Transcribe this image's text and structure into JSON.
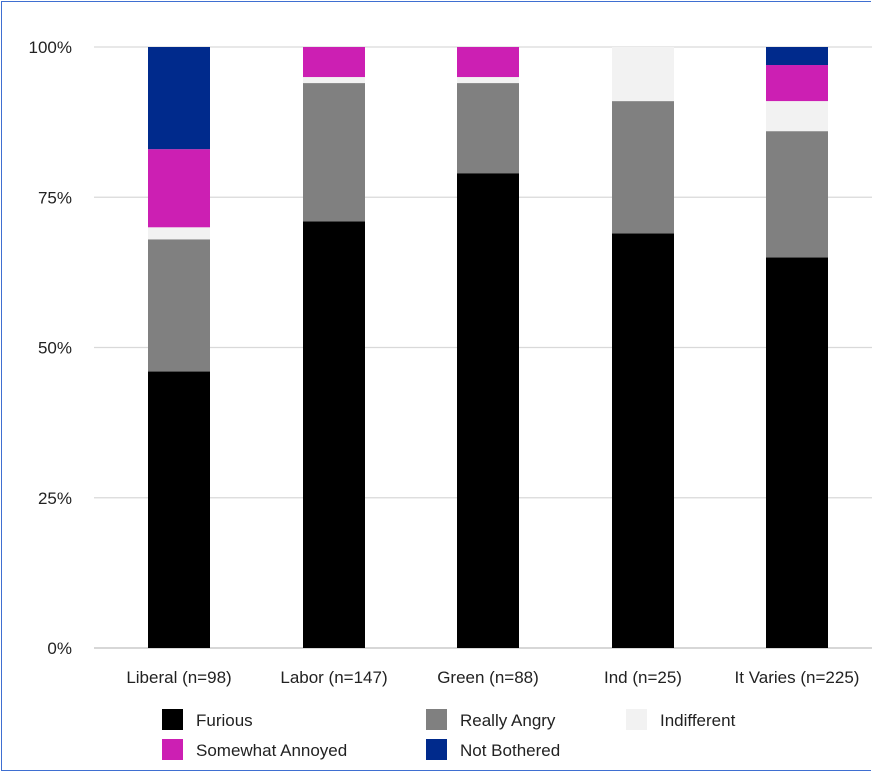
{
  "chart_data": {
    "type": "bar",
    "stacked": true,
    "percent": true,
    "title": "",
    "xlabel": "",
    "ylabel": "",
    "ylim": [
      0,
      100
    ],
    "yticks": [
      "0%",
      "25%",
      "50%",
      "75%",
      "100%"
    ],
    "grid": true,
    "legend_position": "bottom",
    "categories": [
      "Liberal (n=98)",
      "Labor (n=147)",
      "Green (n=88)",
      "Ind (n=25)",
      "It Varies (n=225)"
    ],
    "series": [
      {
        "name": "Furious",
        "color": "#000000",
        "values": [
          46,
          71,
          79,
          69,
          65
        ]
      },
      {
        "name": "Really Angry",
        "color": "#808080",
        "values": [
          22,
          23,
          15,
          22,
          21
        ]
      },
      {
        "name": "Indifferent",
        "color": "#f2f2f2",
        "values": [
          2,
          1,
          1,
          9,
          5
        ]
      },
      {
        "name": "Somewhat Annoyed",
        "color": "#cc1fb3",
        "values": [
          13,
          5,
          5,
          0,
          6
        ]
      },
      {
        "name": "Not Bothered",
        "color": "#002a8c",
        "values": [
          17,
          0,
          0,
          0,
          3
        ]
      }
    ],
    "legend_rows": [
      [
        "Furious",
        "Really Angry",
        "Indifferent"
      ],
      [
        "Somewhat Annoyed",
        "Not Bothered"
      ]
    ]
  }
}
